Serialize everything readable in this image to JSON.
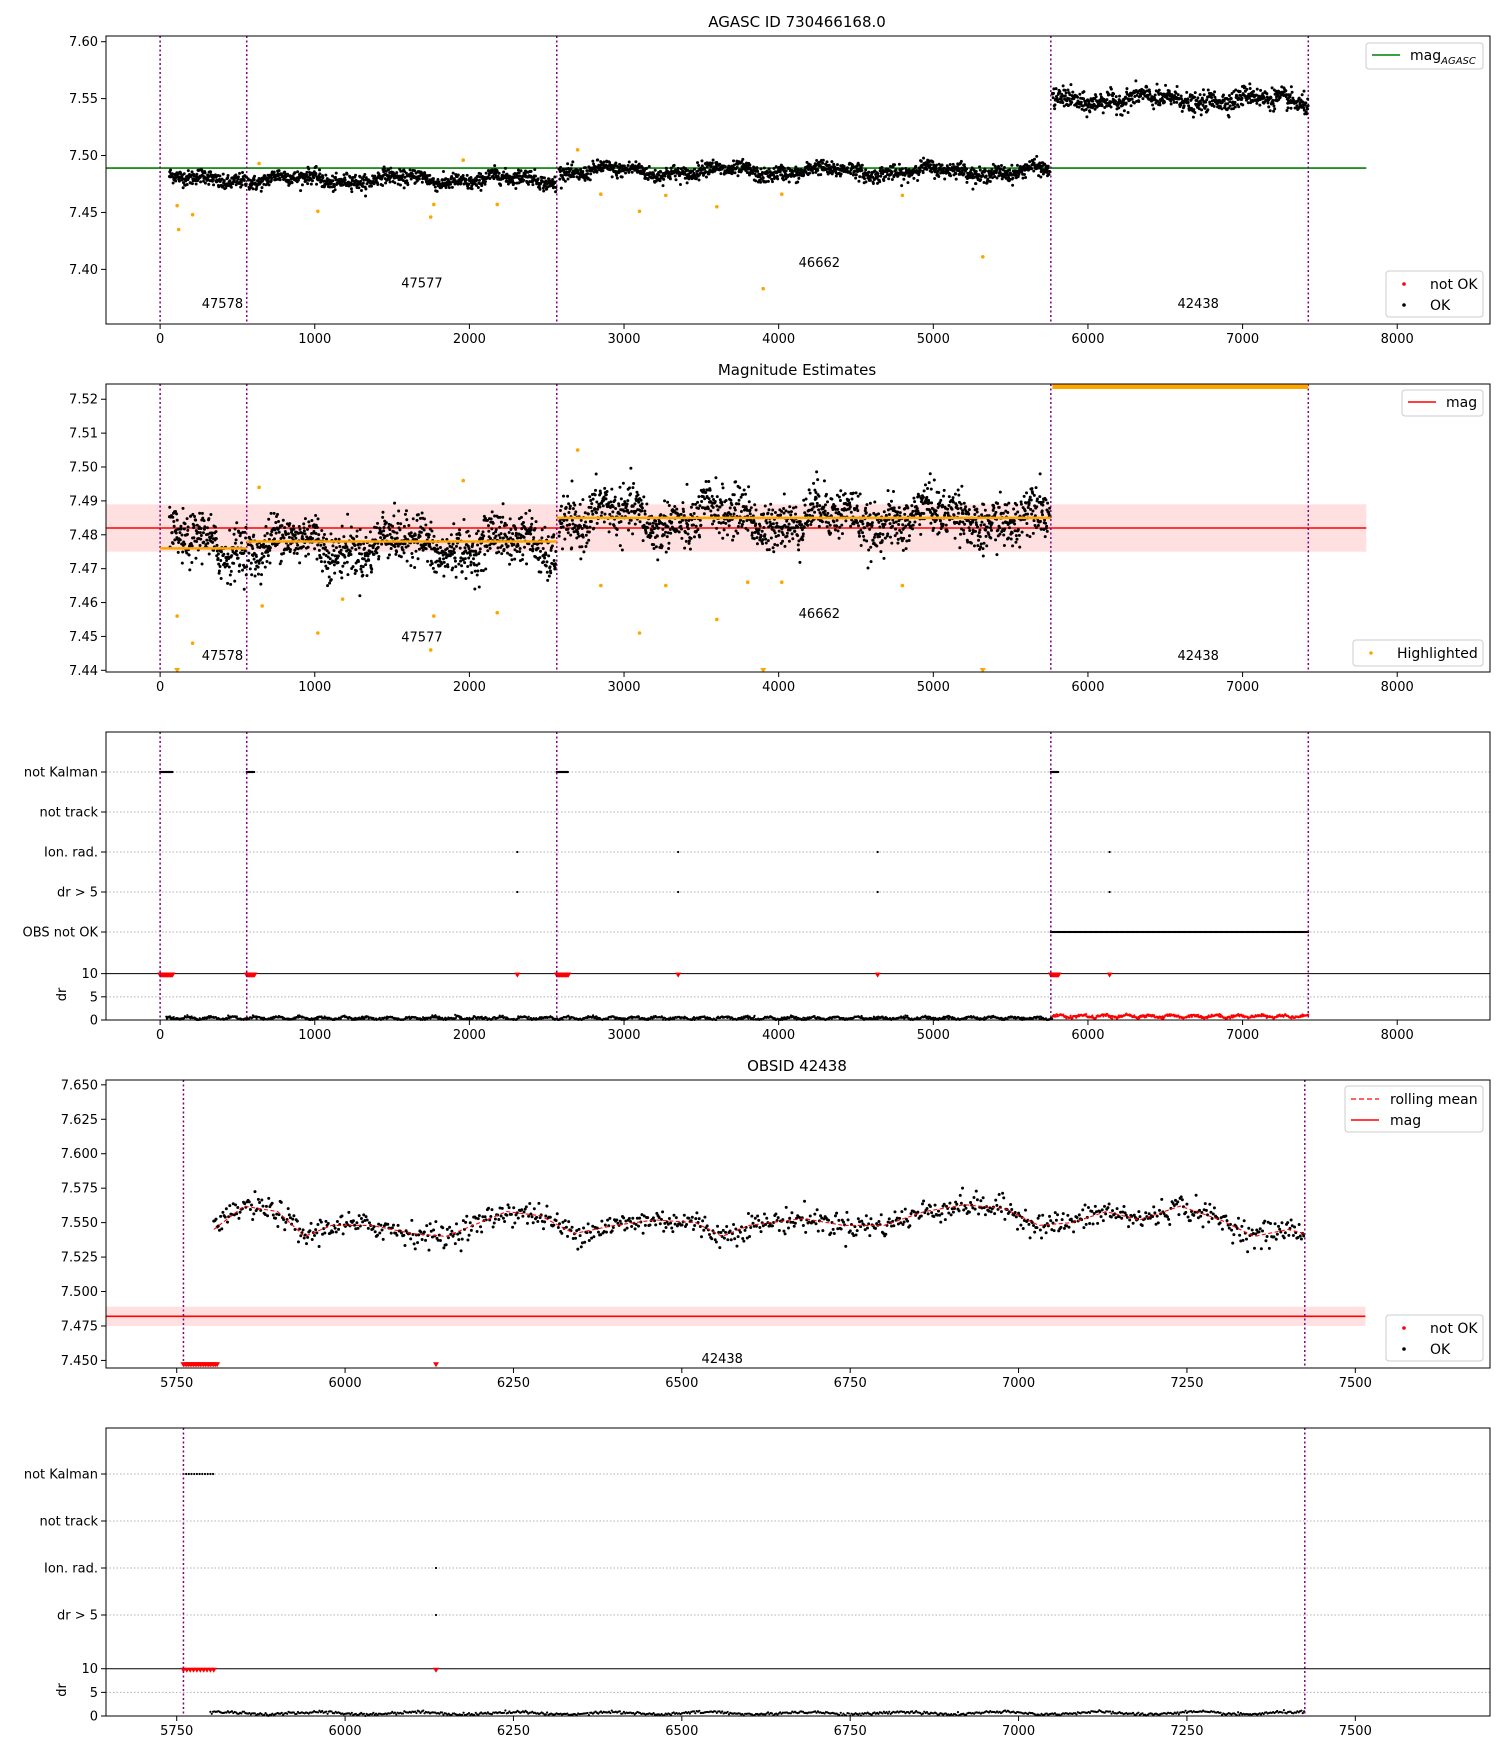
{
  "chart_data": [
    {
      "type": "scatter",
      "title": "AGASC ID 730466168.0",
      "xlim": [
        -350,
        8600
      ],
      "ylim": [
        7.352,
        7.605
      ],
      "xticks": [
        0,
        1000,
        2000,
        3000,
        4000,
        5000,
        6000,
        7000,
        8000
      ],
      "yticks": [
        "7.40",
        "7.45",
        "7.50",
        "7.55",
        "7.60"
      ],
      "obs_boundaries": [
        0,
        560,
        2565,
        5760,
        7425
      ],
      "obs_labels": [
        {
          "x": 140,
          "y": 7.366,
          "text": "47578"
        },
        {
          "x": 1430,
          "y": 7.384,
          "text": "47577"
        },
        {
          "x": 4000,
          "y": 7.402,
          "text": "46662"
        },
        {
          "x": 6450,
          "y": 7.366,
          "text": "42438"
        }
      ],
      "reference_line": {
        "name": "mag",
        "subscript": "AGASC",
        "y": 7.489,
        "x_range": [
          -350,
          7800
        ],
        "color": "#008000"
      },
      "segments": [
        {
          "x_range": [
            60,
            560
          ],
          "mean": 7.479,
          "spread": 0.006
        },
        {
          "x_range": [
            570,
            2560
          ],
          "mean": 7.479,
          "spread": 0.006
        },
        {
          "x_range": [
            2580,
            5755
          ],
          "mean": 7.486,
          "spread": 0.006
        },
        {
          "x_range": [
            5770,
            7425
          ],
          "mean": 7.549,
          "spread": 0.008
        }
      ],
      "highlighted_points": [
        [
          110,
          7.456
        ],
        [
          120,
          7.435
        ],
        [
          210,
          7.448
        ],
        [
          640,
          7.493
        ],
        [
          1020,
          7.451
        ],
        [
          1750,
          7.446
        ],
        [
          1770,
          7.457
        ],
        [
          1960,
          7.496
        ],
        [
          2180,
          7.457
        ],
        [
          2700,
          7.505
        ],
        [
          2850,
          7.466
        ],
        [
          3100,
          7.451
        ],
        [
          3270,
          7.465
        ],
        [
          3600,
          7.455
        ],
        [
          3900,
          7.383
        ],
        [
          4020,
          7.466
        ],
        [
          4800,
          7.465
        ],
        [
          5320,
          7.411
        ]
      ],
      "legend": [
        {
          "label": "not OK",
          "color": "#ff0000"
        },
        {
          "label": "OK",
          "color": "#000000"
        }
      ]
    },
    {
      "type": "scatter",
      "title": "Magnitude Estimates",
      "xlim": [
        -350,
        8600
      ],
      "ylim": [
        7.4395,
        7.5245
      ],
      "xticks": [
        0,
        1000,
        2000,
        3000,
        4000,
        5000,
        6000,
        7000,
        8000
      ],
      "yticks": [
        "7.44",
        "7.45",
        "7.46",
        "7.47",
        "7.48",
        "7.49",
        "7.50",
        "7.51",
        "7.52"
      ],
      "obs_boundaries": [
        0,
        560,
        2565,
        5760,
        7425
      ],
      "obs_labels": [
        {
          "x": 140,
          "y": 7.443,
          "text": "47578"
        },
        {
          "x": 1430,
          "y": 7.4485,
          "text": "47577"
        },
        {
          "x": 4000,
          "y": 7.4555,
          "text": "46662"
        },
        {
          "x": 6450,
          "y": 7.443,
          "text": "42438"
        }
      ],
      "mag_line": {
        "name": "mag",
        "y": 7.482,
        "band": [
          7.475,
          7.489
        ],
        "x_range": [
          -350,
          7800
        ]
      },
      "segment_means": [
        {
          "x_range": [
            0,
            560
          ],
          "y": 7.476
        },
        {
          "x_range": [
            560,
            2565
          ],
          "y": 7.478
        },
        {
          "x_range": [
            2565,
            5760
          ],
          "y": 7.485
        }
      ],
      "segments": [
        {
          "x_range": [
            60,
            560
          ],
          "mean": 7.477,
          "spread": 0.0065
        },
        {
          "x_range": [
            570,
            2560
          ],
          "mean": 7.477,
          "spread": 0.0065
        },
        {
          "x_range": [
            2580,
            5755
          ],
          "mean": 7.485,
          "spread": 0.0065
        }
      ],
      "clipped_segment": {
        "x_range": [
          5770,
          7425
        ],
        "y": 7.5245
      },
      "highlighted_points": [
        [
          110,
          7.456
        ],
        [
          210,
          7.448
        ],
        [
          640,
          7.494
        ],
        [
          660,
          7.459
        ],
        [
          1020,
          7.451
        ],
        [
          1180,
          7.461
        ],
        [
          1750,
          7.446
        ],
        [
          1770,
          7.456
        ],
        [
          1960,
          7.496
        ],
        [
          2180,
          7.457
        ],
        [
          2700,
          7.505
        ],
        [
          2850,
          7.465
        ],
        [
          3100,
          7.451
        ],
        [
          3270,
          7.465
        ],
        [
          3600,
          7.455
        ],
        [
          3800,
          7.466
        ],
        [
          4020,
          7.466
        ],
        [
          4800,
          7.465
        ]
      ],
      "clipped_points": [
        [
          110,
          7.4395
        ],
        [
          3900,
          7.4395
        ],
        [
          5320,
          7.4395
        ]
      ],
      "legend": [
        {
          "label": "Highlighted",
          "color": "#ffa500"
        }
      ]
    },
    {
      "type": "scatter",
      "title": "",
      "xlim": [
        -350,
        8600
      ],
      "xticks": [
        0,
        1000,
        2000,
        3000,
        4000,
        5000,
        6000,
        7000,
        8000
      ],
      "categories": [
        "not Kalman",
        "not track",
        "Ion. rad.",
        "dr > 5",
        "OBS not OK"
      ],
      "flags": {
        "not Kalman": [
          [
            0,
            80
          ],
          [
            560,
            610
          ],
          [
            2565,
            2640
          ],
          [
            5760,
            5810
          ]
        ],
        "Ion. rad.": [
          2310,
          3350,
          4640,
          6140
        ],
        "dr > 5": [
          2310,
          3350,
          4640,
          6140
        ],
        "OBS not OK": [
          [
            5760,
            7425
          ]
        ]
      },
      "dr_subplot": {
        "ylabel": "dr",
        "yticks": [
          "0",
          "5",
          "10"
        ],
        "ylim": [
          0,
          11
        ],
        "typical_value": 0.4,
        "red_segment": [
          5770,
          7425
        ],
        "red_value": 0.8,
        "capped_markers": [
          [
            0,
            80
          ],
          [
            560,
            610
          ],
          [
            2310,
            2310
          ],
          [
            2565,
            2640
          ],
          [
            3350,
            3350
          ],
          [
            4640,
            4640
          ],
          [
            5760,
            5810
          ],
          [
            6140,
            6140
          ]
        ]
      },
      "obs_boundaries": [
        0,
        560,
        2565,
        5760,
        7425
      ]
    },
    {
      "type": "line",
      "title": "OBSID 42438",
      "xlim": [
        5645,
        7700
      ],
      "ylim": [
        7.4445,
        7.6535
      ],
      "xticks": [
        5750,
        6000,
        6250,
        6500,
        6750,
        7000,
        7250,
        7500
      ],
      "yticks": [
        "7.450",
        "7.475",
        "7.500",
        "7.525",
        "7.550",
        "7.575",
        "7.600",
        "7.625",
        "7.650"
      ],
      "obs_boundaries": [
        5760,
        7425
      ],
      "obs_label": {
        "x": 6560,
        "y": 7.448,
        "text": "42438"
      },
      "mag_line": {
        "name": "mag",
        "y": 7.482,
        "band": [
          7.475,
          7.489
        ],
        "x_range": [
          5645,
          7515
        ]
      },
      "rolling_mean_label": "rolling mean",
      "rolling_mean": [
        [
          5805,
          7.545
        ],
        [
          5850,
          7.562
        ],
        [
          5900,
          7.558
        ],
        [
          5940,
          7.54
        ],
        [
          5980,
          7.548
        ],
        [
          6040,
          7.548
        ],
        [
          6100,
          7.542
        ],
        [
          6150,
          7.54
        ],
        [
          6200,
          7.55
        ],
        [
          6240,
          7.558
        ],
        [
          6290,
          7.555
        ],
        [
          6340,
          7.542
        ],
        [
          6400,
          7.548
        ],
        [
          6460,
          7.552
        ],
        [
          6520,
          7.55
        ],
        [
          6560,
          7.54
        ],
        [
          6600,
          7.548
        ],
        [
          6680,
          7.553
        ],
        [
          6740,
          7.548
        ],
        [
          6800,
          7.548
        ],
        [
          6860,
          7.558
        ],
        [
          6920,
          7.563
        ],
        [
          6980,
          7.56
        ],
        [
          7030,
          7.548
        ],
        [
          7080,
          7.55
        ],
        [
          7130,
          7.558
        ],
        [
          7180,
          7.552
        ],
        [
          7240,
          7.562
        ],
        [
          7300,
          7.552
        ],
        [
          7350,
          7.54
        ],
        [
          7400,
          7.545
        ],
        [
          7425,
          7.542
        ]
      ],
      "noise": 0.006,
      "not_ok_markers": {
        "x_range": [
          5760,
          5810
        ],
        "y": 7.4465,
        "extra_x": [
          6135
        ]
      },
      "legend": [
        {
          "label": "rolling mean",
          "color": "#ff0000"
        },
        {
          "label": "mag",
          "color": "#ff0000"
        },
        {
          "label": "not OK",
          "color": "#ff0000"
        },
        {
          "label": "OK",
          "color": "#000000"
        }
      ]
    },
    {
      "type": "scatter",
      "title": "",
      "xlim": [
        5645,
        7700
      ],
      "xticks": [
        5750,
        6000,
        6250,
        6500,
        6750,
        7000,
        7250,
        7500
      ],
      "categories": [
        "not Kalman",
        "not track",
        "Ion. rad.",
        "dr > 5"
      ],
      "flags": {
        "not Kalman": [
          [
            5760,
            5805
          ]
        ],
        "Ion. rad.": [
          6135
        ],
        "dr > 5": [
          6135
        ]
      },
      "dr_subplot": {
        "ylabel": "dr",
        "yticks": [
          "0",
          "5",
          "10"
        ],
        "ylim": [
          0,
          11
        ],
        "typical_value": 0.6,
        "capped_markers": [
          [
            5760,
            5805
          ],
          [
            6135,
            6135
          ]
        ]
      },
      "obs_boundaries": [
        5760,
        7425
      ]
    }
  ]
}
